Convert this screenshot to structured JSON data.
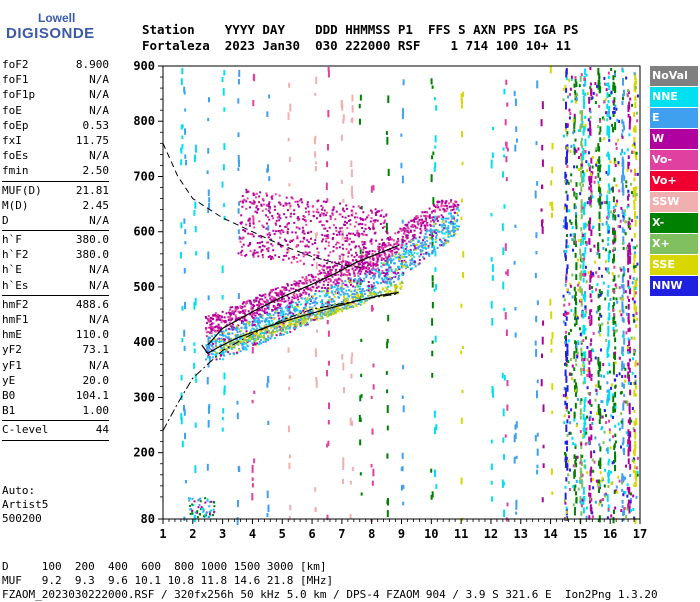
{
  "logo": {
    "line1": "Lowell",
    "line2": "DIGISONDE"
  },
  "header": {
    "line1": "Station    YYYY DAY    DDD HHMMSS P1  FFS S AXN PPS IGA PS",
    "line2": "Fortaleza  2023 Jan30  030 222000 RSF    1 714 100 10+ 11"
  },
  "params": [
    {
      "label": "foF2",
      "value": "8.900"
    },
    {
      "label": "foF1",
      "value": "N/A"
    },
    {
      "label": "foF1p",
      "value": "N/A"
    },
    {
      "label": "foE",
      "value": "N/A"
    },
    {
      "label": "foEp",
      "value": "0.53"
    },
    {
      "label": "fxI",
      "value": "11.75"
    },
    {
      "label": "foEs",
      "value": "N/A"
    },
    {
      "label": "fmin",
      "value": "2.50"
    },
    {
      "sep": true
    },
    {
      "label": "MUF(D)",
      "value": "21.81"
    },
    {
      "label": "M(D)",
      "value": "2.45"
    },
    {
      "label": "D",
      "value": "N/A"
    },
    {
      "sep": true
    },
    {
      "label": "h`F",
      "value": "380.0"
    },
    {
      "label": "h`F2",
      "value": "380.0"
    },
    {
      "label": "h`E",
      "value": "N/A"
    },
    {
      "label": "h`Es",
      "value": "N/A"
    },
    {
      "sep": true
    },
    {
      "label": "hmF2",
      "value": "488.6"
    },
    {
      "label": "hmF1",
      "value": "N/A"
    },
    {
      "label": "hmE",
      "value": "110.0"
    },
    {
      "label": "yF2",
      "value": "73.1"
    },
    {
      "label": "yF1",
      "value": "N/A"
    },
    {
      "label": "yE",
      "value": "20.0"
    },
    {
      "label": "B0",
      "value": "104.1"
    },
    {
      "label": "B1",
      "value": "1.00"
    },
    {
      "sep": true
    },
    {
      "label": "C-level",
      "value": "44"
    }
  ],
  "auto": {
    "line1": "Auto:",
    "line2": "Artist5",
    "line3": "500200"
  },
  "legend": [
    {
      "label": "NoVal",
      "color": "#808080"
    },
    {
      "label": "NNE",
      "color": "#00e0f0"
    },
    {
      "label": "E",
      "color": "#40a0f0"
    },
    {
      "label": "W",
      "color": "#b000a0"
    },
    {
      "label": "Vo-",
      "color": "#e040a0"
    },
    {
      "label": "Vo+",
      "color": "#f00030"
    },
    {
      "label": "SSW",
      "color": "#f0b0b0"
    },
    {
      "label": "X-",
      "color": "#008000"
    },
    {
      "label": "X+",
      "color": "#80c060"
    },
    {
      "label": "SSE",
      "color": "#d8d800"
    },
    {
      "label": "NNW",
      "color": "#2020e0"
    }
  ],
  "bottom": {
    "line1": "D     100  200  400  600  800 1000 1500 3000 [km]",
    "line2": "MUF   9.2  9.3  9.6 10.1 10.8 11.8 14.6 21.8 [MHz]",
    "line3": "FZAOM_2023030222000.RSF / 320fx256h 50 kHz 5.0 km / DPS-4 FZAOM 904 / 3.9 S 321.6 E  Ion2Png 1.3.20"
  },
  "chart_data": {
    "type": "scatter",
    "xlim": [
      1,
      17
    ],
    "ylim": [
      80,
      900
    ],
    "xticks": [
      1,
      2,
      3,
      4,
      5,
      6,
      7,
      8,
      9,
      10,
      11,
      12,
      13,
      14,
      15,
      16,
      17
    ],
    "yticks": [
      80,
      200,
      300,
      400,
      500,
      600,
      700,
      800,
      900
    ],
    "ionogram_trace": {
      "ordinary": {
        "x": [
          2.4,
          2.6,
          3.0,
          3.5,
          4.0,
          4.5,
          5.0,
          5.5,
          6.0,
          6.5,
          7.0,
          7.5,
          8.0,
          8.5,
          8.9
        ],
        "y": [
          385,
          392,
          405,
          418,
          430,
          440,
          451,
          460,
          470,
          480,
          492,
          505,
          520,
          540,
          565
        ]
      },
      "extraordinary": {
        "x": [
          3.0,
          3.5,
          4.0,
          5.0,
          6.0,
          7.0,
          8.0,
          9.0,
          9.5,
          10.0,
          10.5,
          10.9
        ],
        "y": [
          410,
          420,
          432,
          450,
          470,
          492,
          515,
          545,
          565,
          585,
          610,
          640
        ]
      },
      "model_profile": {
        "x": [
          2.3,
          2.5,
          2.9,
          3.5,
          4.5,
          5.5,
          6.5,
          7.5,
          8.3,
          8.9
        ],
        "y": [
          395,
          380,
          392,
          408,
          428,
          445,
          460,
          475,
          485,
          490
        ]
      },
      "profile_upper": {
        "x": [
          2.5,
          3.0,
          4.0,
          5.0,
          6.0,
          6.8,
          7.5,
          8.2,
          8.9
        ],
        "y": [
          395,
          425,
          455,
          482,
          505,
          525,
          545,
          560,
          575
        ]
      }
    },
    "dashed_curve": {
      "x": [
        1.0,
        1.5,
        2.0,
        3.0,
        4.0,
        5.0,
        6.0,
        7.0,
        7.7
      ],
      "y": [
        760,
        700,
        660,
        625,
        600,
        575,
        555,
        540,
        535
      ]
    },
    "dashdot_curve": {
      "x": [
        1.0,
        1.5,
        2.0,
        3.0,
        4.0,
        5.0,
        6.0,
        7.0,
        8.0,
        8.9
      ],
      "y": [
        240,
        290,
        335,
        385,
        415,
        440,
        460,
        470,
        480,
        488
      ]
    }
  }
}
